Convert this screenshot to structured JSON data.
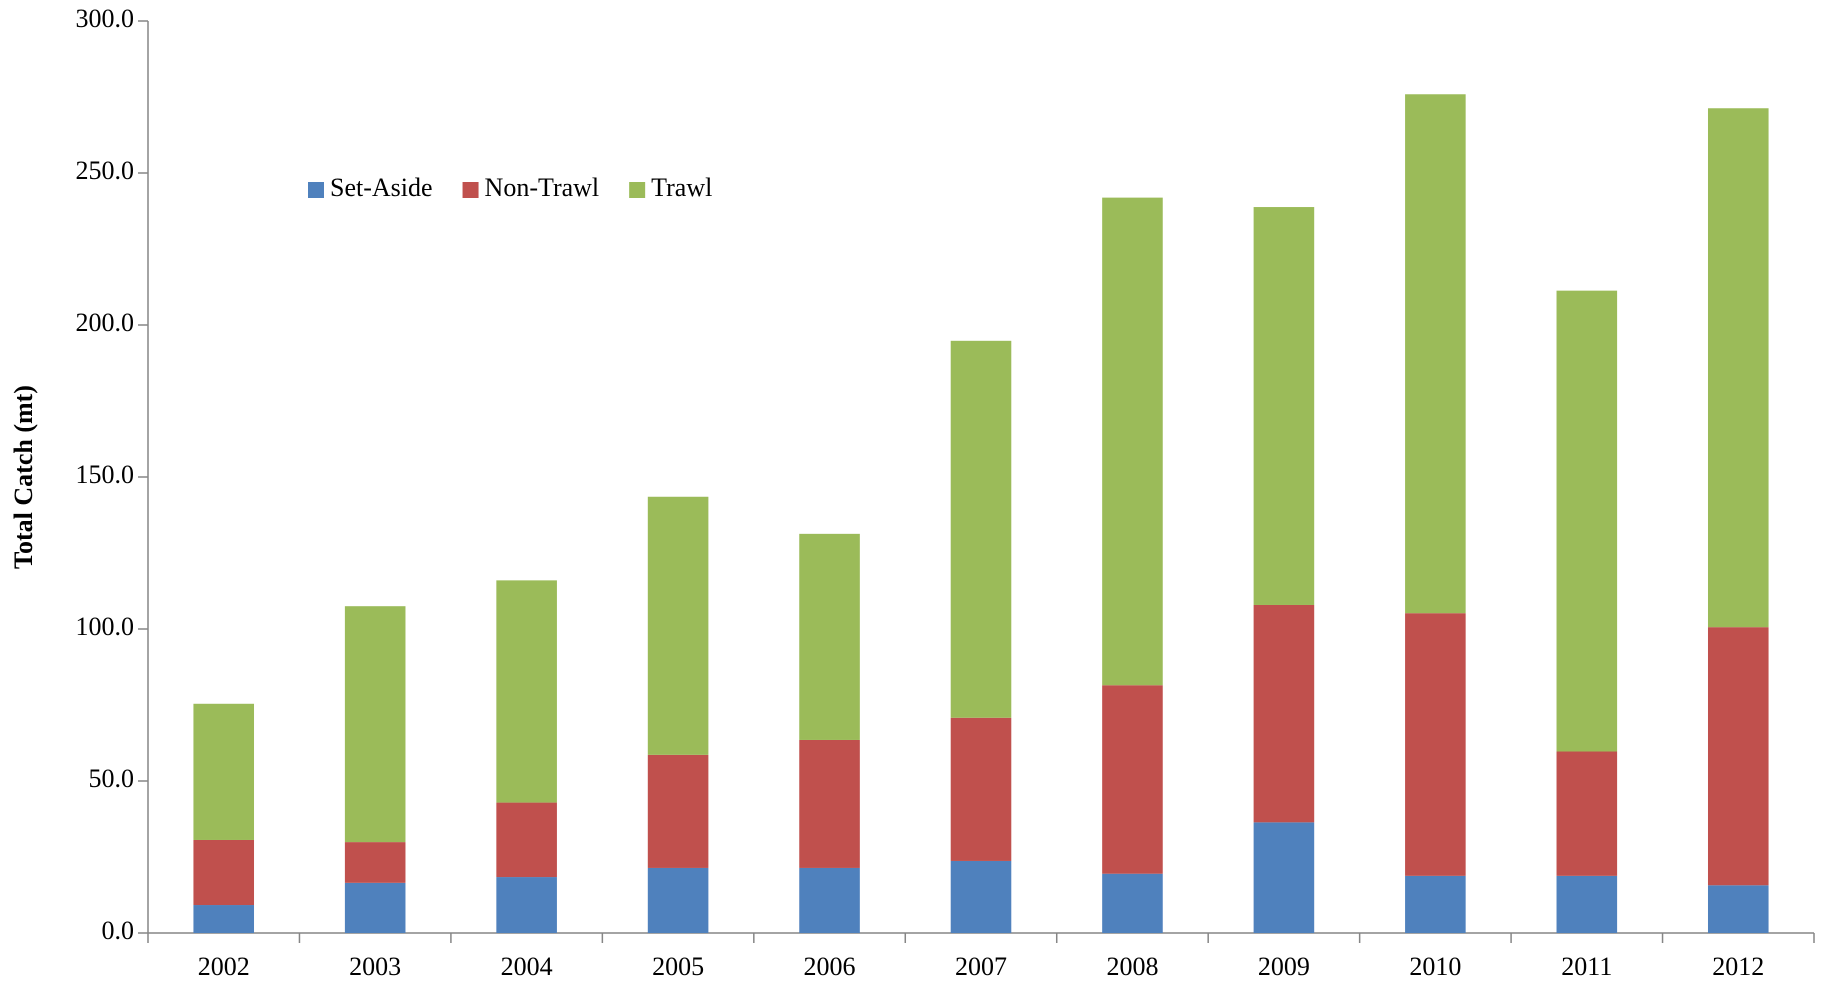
{
  "chart_data": {
    "type": "stacked-bar",
    "y_label": "Total Catch (mt)",
    "categories": [
      "2002",
      "2003",
      "2004",
      "2005",
      "2006",
      "2007",
      "2008",
      "2009",
      "2010",
      "2011",
      "2012"
    ],
    "series": [
      {
        "name": "Set-Aside",
        "color": "#4f81bd",
        "values": [
          9.2,
          16.5,
          18.4,
          21.4,
          21.4,
          23.7,
          19.5,
          36.4,
          18.8,
          18.8,
          15.7
        ]
      },
      {
        "name": "Non-Trawl",
        "color": "#c0504d",
        "values": [
          21.4,
          13.4,
          24.5,
          37.2,
          42.1,
          47.1,
          62.0,
          71.5,
          86.4,
          40.9,
          84.9
        ]
      },
      {
        "name": "Trawl",
        "color": "#9bbb59",
        "values": [
          44.8,
          77.6,
          73.1,
          84.9,
          67.8,
          124.0,
          160.4,
          130.9,
          170.7,
          151.6,
          170.7
        ]
      }
    ],
    "ylim": [
      0,
      300
    ],
    "yticks": [
      {
        "value": 0,
        "label": "0.0"
      },
      {
        "value": 50,
        "label": "50.0"
      },
      {
        "value": 100,
        "label": "100.0"
      },
      {
        "value": 150,
        "label": "150.0"
      },
      {
        "value": 200,
        "label": "200.0"
      },
      {
        "value": 250,
        "label": "250.0"
      },
      {
        "value": 300,
        "label": "300.0"
      }
    ],
    "grid": false,
    "legend": "top-left"
  }
}
